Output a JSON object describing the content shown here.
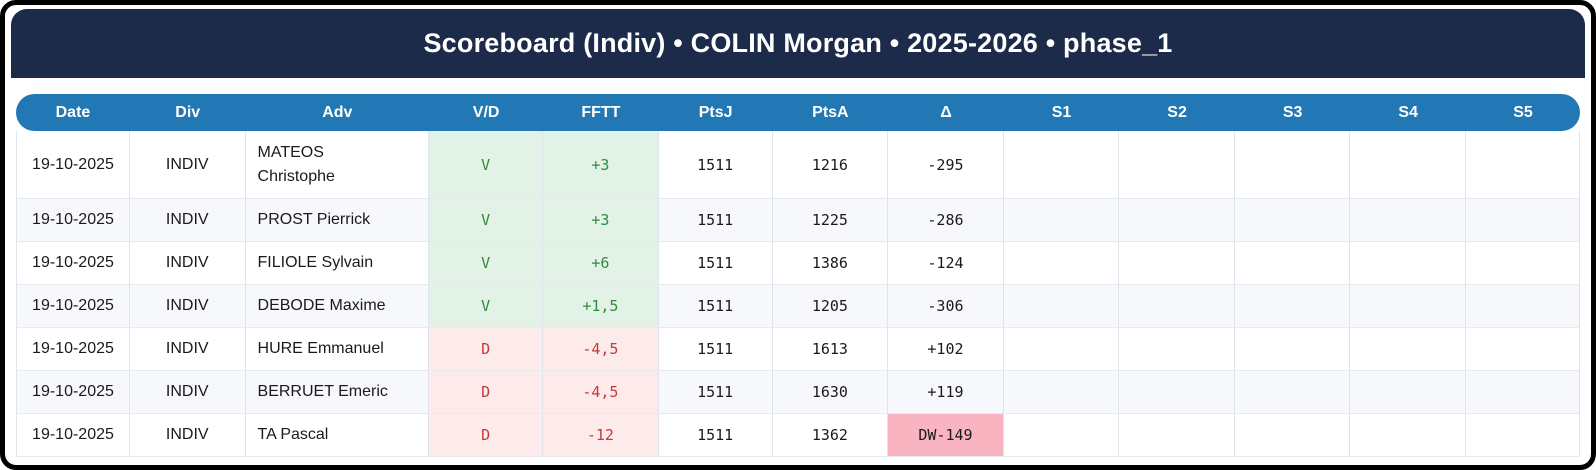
{
  "title": "Scoreboard (Indiv) • COLIN Morgan • 2025-2026 • phase_1",
  "colors": {
    "title_band": "#1c2b4a",
    "header_row": "#2278b5",
    "win_bg": "#e3f2e6",
    "win_text": "#2f8b3e",
    "loss_bg": "#fdeaea",
    "loss_text": "#c43b3b",
    "delta_warning_bg": "#f9b3c1",
    "even_row_bg": "#f6f8fc"
  },
  "table": {
    "columns": [
      "Date",
      "Div",
      "Adv",
      "V/D",
      "FFTT",
      "PtsJ",
      "PtsA",
      "Δ",
      "S1",
      "S2",
      "S3",
      "S4",
      "S5"
    ],
    "rows": [
      {
        "date": "19-10-2025",
        "div": "INDIV",
        "adv": "MATEOS\nChristophe",
        "vd": "V",
        "fftt": "+3",
        "ptsj": "1511",
        "ptsa": "1216",
        "delta": "-295",
        "delta_highlight": false,
        "result": "win",
        "s1": "",
        "s2": "",
        "s3": "",
        "s4": "",
        "s5": ""
      },
      {
        "date": "19-10-2025",
        "div": "INDIV",
        "adv": "PROST Pierrick",
        "vd": "V",
        "fftt": "+3",
        "ptsj": "1511",
        "ptsa": "1225",
        "delta": "-286",
        "delta_highlight": false,
        "result": "win",
        "s1": "",
        "s2": "",
        "s3": "",
        "s4": "",
        "s5": ""
      },
      {
        "date": "19-10-2025",
        "div": "INDIV",
        "adv": "FILIOLE Sylvain",
        "vd": "V",
        "fftt": "+6",
        "ptsj": "1511",
        "ptsa": "1386",
        "delta": "-124",
        "delta_highlight": false,
        "result": "win",
        "s1": "",
        "s2": "",
        "s3": "",
        "s4": "",
        "s5": ""
      },
      {
        "date": "19-10-2025",
        "div": "INDIV",
        "adv": "DEBODE Maxime",
        "vd": "V",
        "fftt": "+1,5",
        "ptsj": "1511",
        "ptsa": "1205",
        "delta": "-306",
        "delta_highlight": false,
        "result": "win",
        "s1": "",
        "s2": "",
        "s3": "",
        "s4": "",
        "s5": ""
      },
      {
        "date": "19-10-2025",
        "div": "INDIV",
        "adv": "HURE Emmanuel",
        "vd": "D",
        "fftt": "-4,5",
        "ptsj": "1511",
        "ptsa": "1613",
        "delta": "+102",
        "delta_highlight": false,
        "result": "loss",
        "s1": "",
        "s2": "",
        "s3": "",
        "s4": "",
        "s5": ""
      },
      {
        "date": "19-10-2025",
        "div": "INDIV",
        "adv": "BERRUET Emeric",
        "vd": "D",
        "fftt": "-4,5",
        "ptsj": "1511",
        "ptsa": "1630",
        "delta": "+119",
        "delta_highlight": false,
        "result": "loss",
        "s1": "",
        "s2": "",
        "s3": "",
        "s4": "",
        "s5": ""
      },
      {
        "date": "19-10-2025",
        "div": "INDIV",
        "adv": "TA Pascal",
        "vd": "D",
        "fftt": "-12",
        "ptsj": "1511",
        "ptsa": "1362",
        "delta": "DW-149",
        "delta_highlight": true,
        "result": "loss",
        "s1": "",
        "s2": "",
        "s3": "",
        "s4": "",
        "s5": ""
      }
    ]
  }
}
